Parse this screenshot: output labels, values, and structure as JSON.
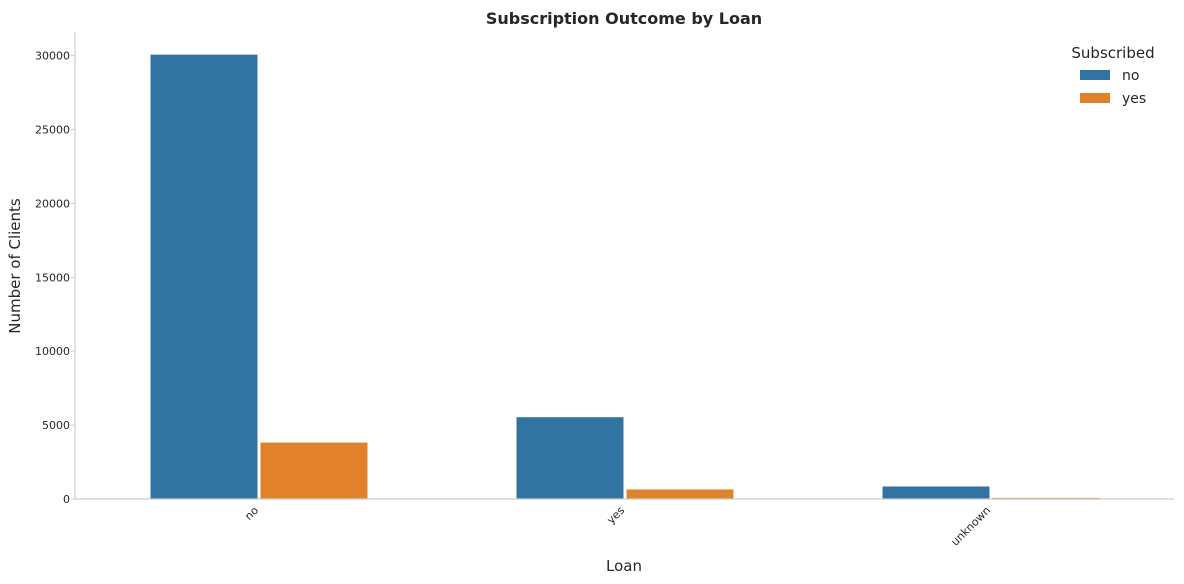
{
  "chart_data": {
    "type": "bar",
    "title": "Subscription Outcome by Loan",
    "xlabel": "Loan",
    "ylabel": "Number of Clients",
    "categories": [
      "no",
      "yes",
      "unknown"
    ],
    "series": [
      {
        "name": "no",
        "color": "#3274a1",
        "values": [
          30100,
          5570,
          880
        ]
      },
      {
        "name": "yes",
        "color": "#e1812c",
        "values": [
          3850,
          680,
          110
        ]
      }
    ],
    "ylim": [
      0,
      31600
    ],
    "yticks": [
      0,
      5000,
      10000,
      15000,
      20000,
      25000,
      30000
    ],
    "ytick_labels": [
      "0",
      "5000",
      "10000",
      "15000",
      "20000",
      "25000",
      "30000"
    ],
    "grid": false,
    "legend": {
      "title": "Subscribed",
      "placement": "top-right",
      "entries": [
        "no",
        "yes"
      ]
    }
  }
}
